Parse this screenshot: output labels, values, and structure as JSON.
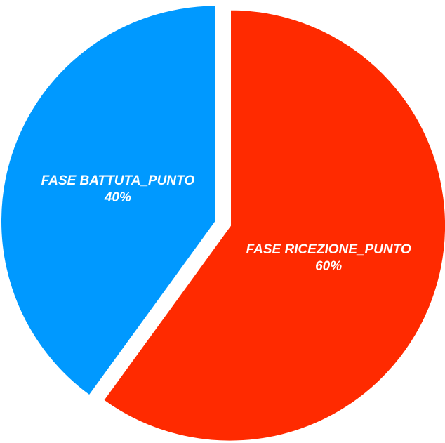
{
  "chart_data": {
    "type": "pie",
    "slices": [
      {
        "label": "FASE RICEZIONE_PUNTO",
        "value": 60,
        "value_label": "60%",
        "color": "#ff2a00"
      },
      {
        "label": "FASE BATTUTA_PUNTO",
        "value": 40,
        "value_label": "40%",
        "color": "#0099ff"
      }
    ],
    "exploded": true,
    "legend": "none"
  }
}
